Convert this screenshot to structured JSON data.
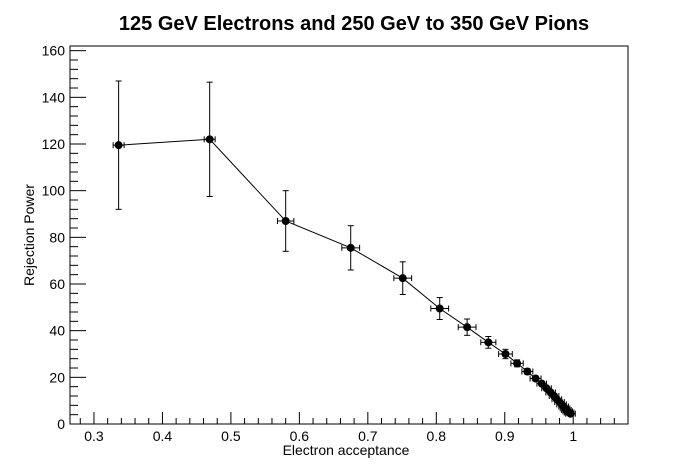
{
  "chart_data": {
    "type": "scatter",
    "title": "125 GeV Electrons and 250 GeV to 350 GeV Pions",
    "xlabel": "Electron acceptance",
    "ylabel": "Rejection Power",
    "xlim": [
      0.265,
      1.08
    ],
    "ylim": [
      0,
      162
    ],
    "x_ticks": [
      0.3,
      0.4,
      0.5,
      0.6,
      0.7,
      0.8,
      0.9,
      1
    ],
    "x_tick_labels": [
      "0.3",
      "0.4",
      "0.5",
      "0.6",
      "0.7",
      "0.8",
      "0.9",
      "1"
    ],
    "y_ticks": [
      0,
      20,
      40,
      60,
      80,
      100,
      120,
      140,
      160
    ],
    "y_tick_labels": [
      "0",
      "20",
      "40",
      "60",
      "80",
      "100",
      "120",
      "140",
      "160"
    ],
    "grid": false,
    "line": true,
    "series": [
      {
        "points": [
          {
            "x": 0.336,
            "y": 119.5,
            "xerr": 0.008,
            "yerr": 27.5
          },
          {
            "x": 0.469,
            "y": 122.0,
            "xerr": 0.008,
            "yerr": 24.5
          },
          {
            "x": 0.58,
            "y": 87.0,
            "xerr": 0.012,
            "yerr": 13.0
          },
          {
            "x": 0.675,
            "y": 75.5,
            "xerr": 0.013,
            "yerr": 9.5
          },
          {
            "x": 0.751,
            "y": 62.5,
            "xerr": 0.013,
            "yerr": 7.0
          },
          {
            "x": 0.805,
            "y": 49.5,
            "xerr": 0.013,
            "yerr": 4.7
          },
          {
            "x": 0.845,
            "y": 41.5,
            "xerr": 0.013,
            "yerr": 3.5
          },
          {
            "x": 0.876,
            "y": 35.0,
            "xerr": 0.011,
            "yerr": 2.5
          },
          {
            "x": 0.901,
            "y": 30.0,
            "xerr": 0.01,
            "yerr": 2.0
          },
          {
            "x": 0.918,
            "y": 26.0,
            "xerr": 0.009,
            "yerr": 1.5
          },
          {
            "x": 0.933,
            "y": 22.5,
            "xerr": 0.008,
            "yerr": 1.2
          },
          {
            "x": 0.945,
            "y": 19.5,
            "xerr": 0.008,
            "yerr": 1.0
          },
          {
            "x": 0.954,
            "y": 17.3,
            "xerr": 0.007,
            "yerr": 0.9
          },
          {
            "x": 0.961,
            "y": 15.3,
            "xerr": 0.007,
            "yerr": 0.8
          },
          {
            "x": 0.967,
            "y": 13.5,
            "xerr": 0.007,
            "yerr": 0.7
          },
          {
            "x": 0.972,
            "y": 12.0,
            "xerr": 0.007,
            "yerr": 0.6
          },
          {
            "x": 0.976,
            "y": 10.6,
            "xerr": 0.007,
            "yerr": 0.5
          },
          {
            "x": 0.98,
            "y": 9.4,
            "xerr": 0.007,
            "yerr": 0.5
          },
          {
            "x": 0.983,
            "y": 8.4,
            "xerr": 0.007,
            "yerr": 0.4
          },
          {
            "x": 0.986,
            "y": 7.5,
            "xerr": 0.007,
            "yerr": 0.4
          },
          {
            "x": 0.988,
            "y": 6.7,
            "xerr": 0.007,
            "yerr": 0.3
          },
          {
            "x": 0.99,
            "y": 6.0,
            "xerr": 0.007,
            "yerr": 0.3
          },
          {
            "x": 0.992,
            "y": 5.4,
            "xerr": 0.007,
            "yerr": 0.3
          },
          {
            "x": 0.994,
            "y": 4.9,
            "xerr": 0.007,
            "yerr": 0.3
          },
          {
            "x": 0.996,
            "y": 4.4,
            "xerr": 0.007,
            "yerr": 0.2
          }
        ],
        "color": "#000000"
      }
    ]
  }
}
